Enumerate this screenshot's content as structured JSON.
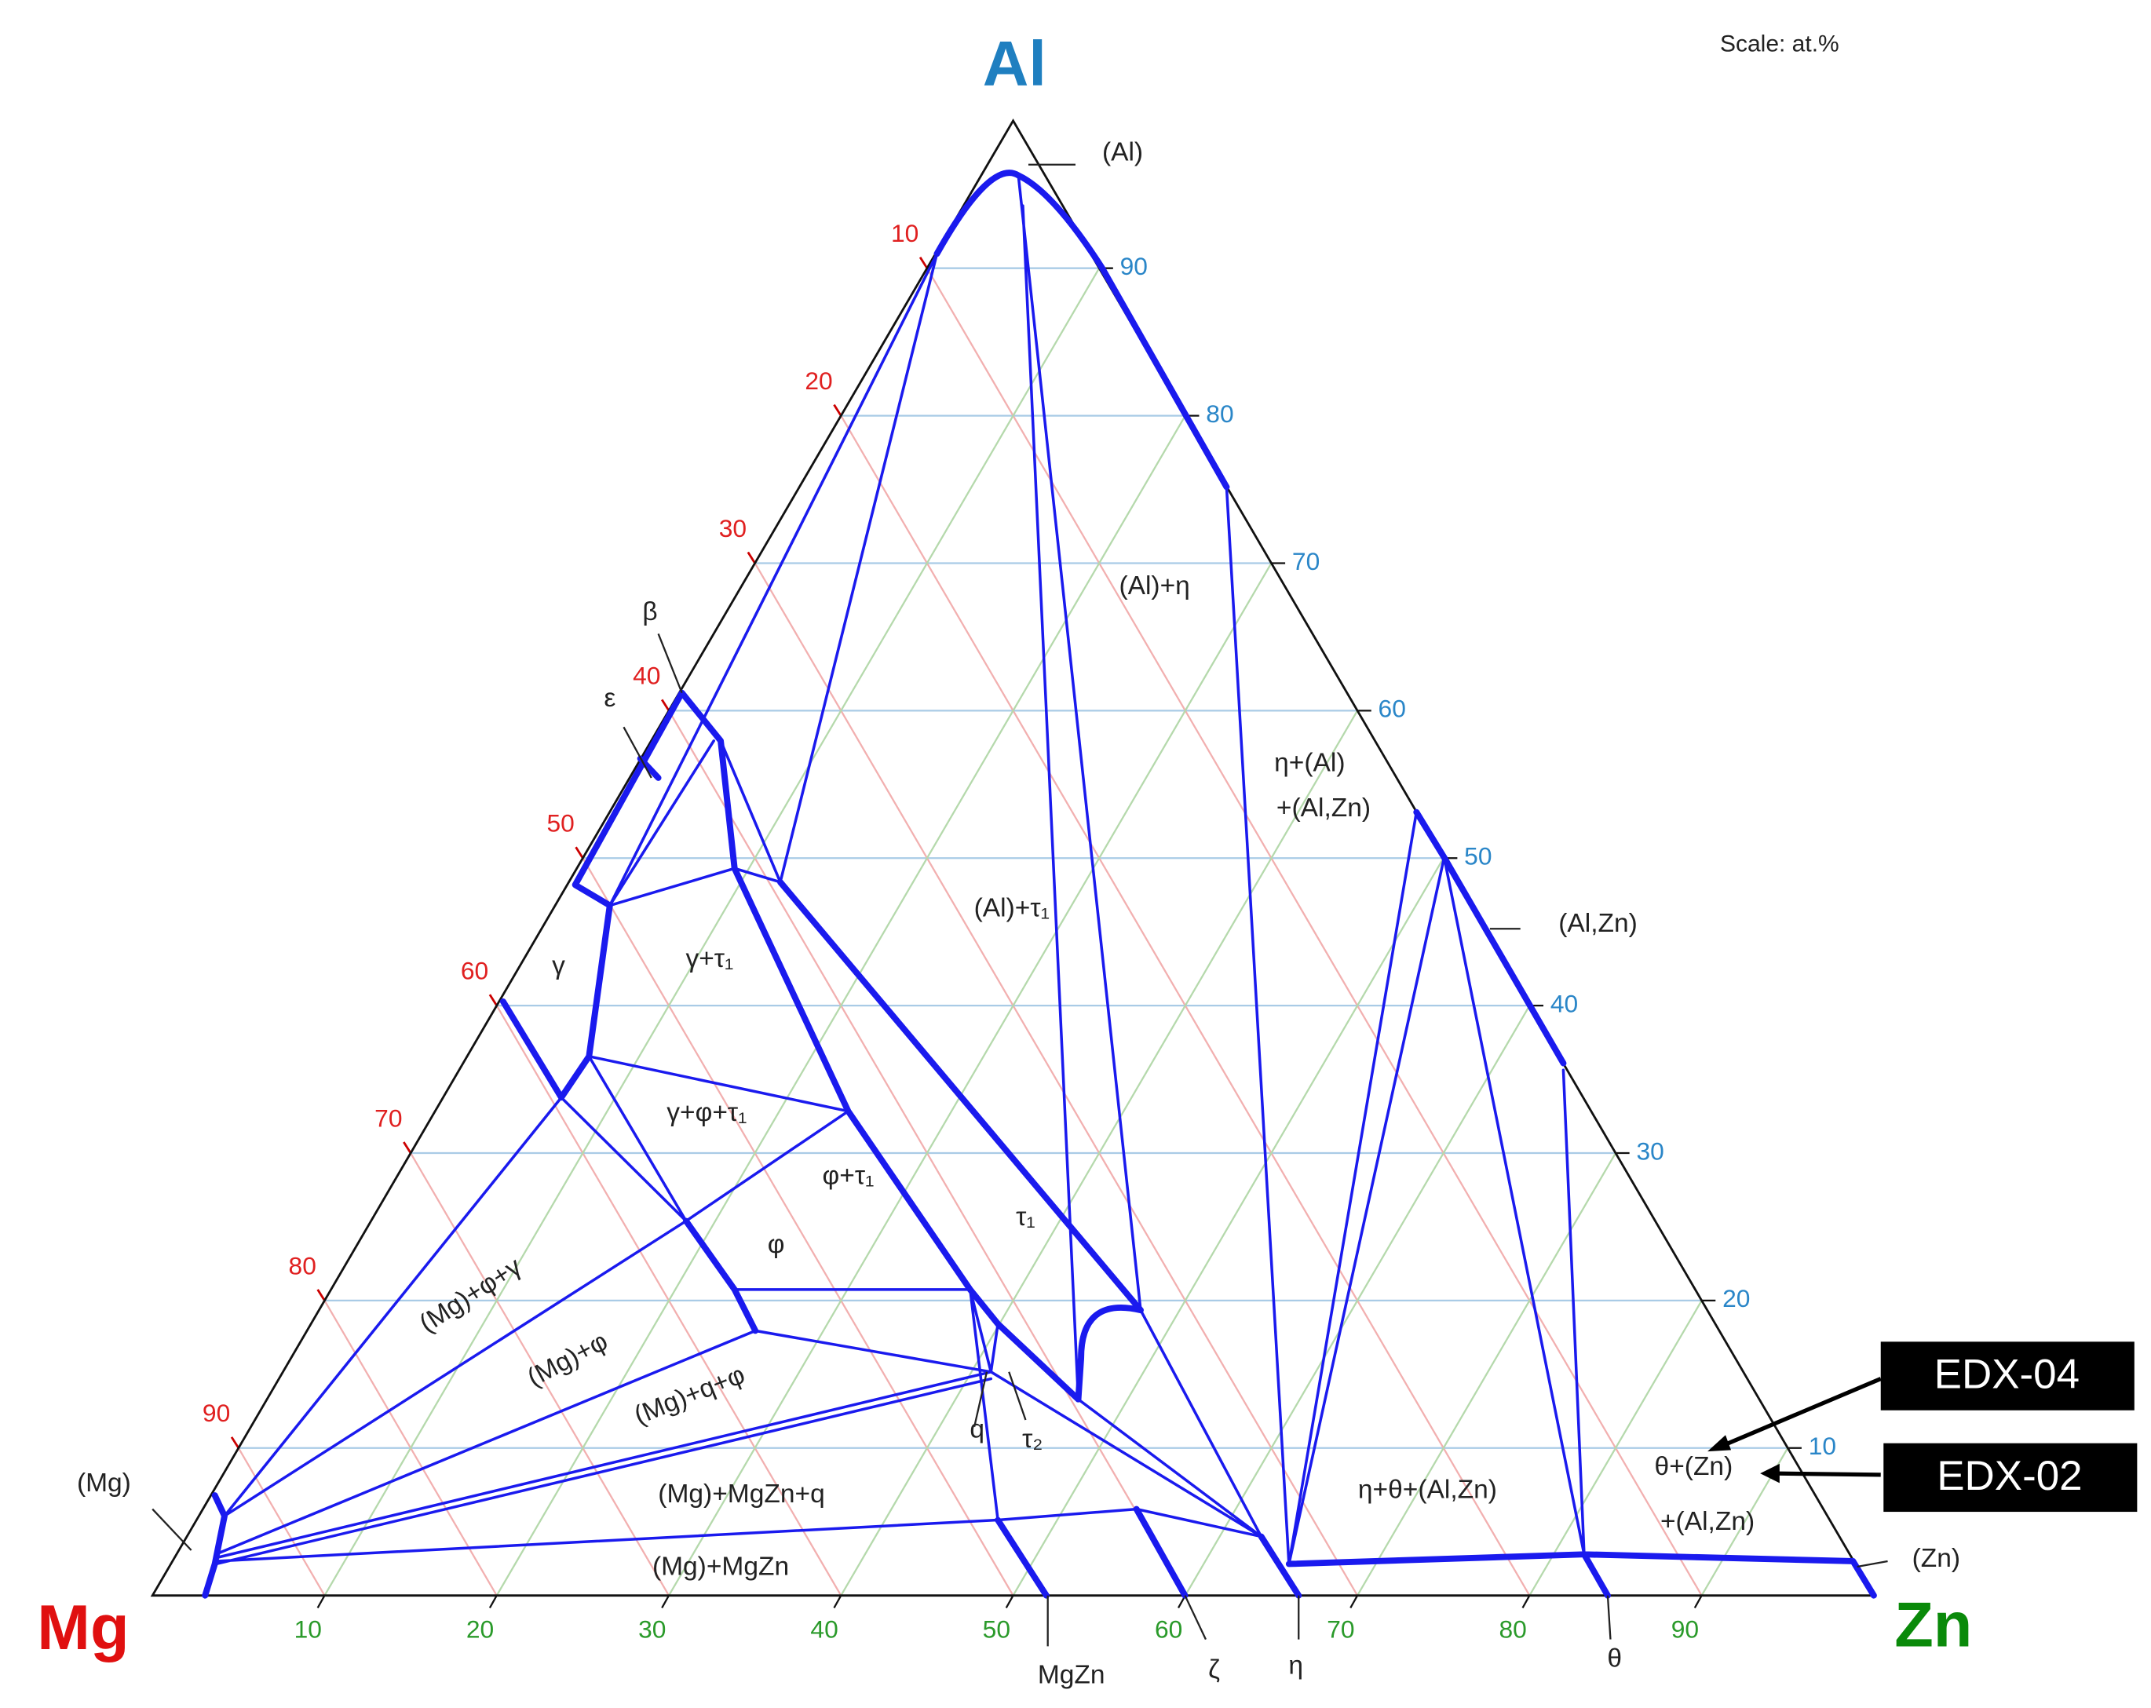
{
  "vertices": {
    "top": "Al",
    "left": "Mg",
    "right": "Zn"
  },
  "scale": "Scale: at.%",
  "axes": {
    "al_ticks": [
      10,
      20,
      30,
      40,
      50,
      60,
      70,
      80,
      90
    ],
    "mg_ticks": [
      10,
      20,
      30,
      40,
      50,
      60,
      70,
      80,
      90
    ],
    "zn_ticks": [
      10,
      20,
      30,
      40,
      50,
      60,
      70,
      80,
      90
    ]
  },
  "phases": [
    "(Al)",
    "(Al)+η",
    "η+(Al)",
    "+(Al,Zn)",
    "(Al)+τ₁",
    "(Al,Zn)",
    "β",
    "ε",
    "γ",
    "γ+τ₁",
    "γ+φ+τ₁",
    "φ+τ₁",
    "τ₁",
    "φ",
    "(Mg)+φ+γ",
    "(Mg)+φ",
    "(Mg)+q+φ",
    "q",
    "τ₂",
    "(Mg)+MgZn+q",
    "(Mg)+MgZn",
    "η+θ+(Al,Zn)",
    "θ+(Zn)",
    "+(Al,Zn)",
    "(Zn)",
    "(Mg)",
    "MgZn",
    "ζ",
    "η",
    "θ"
  ],
  "callouts": [
    "EDX-04",
    "EDX-02"
  ]
}
